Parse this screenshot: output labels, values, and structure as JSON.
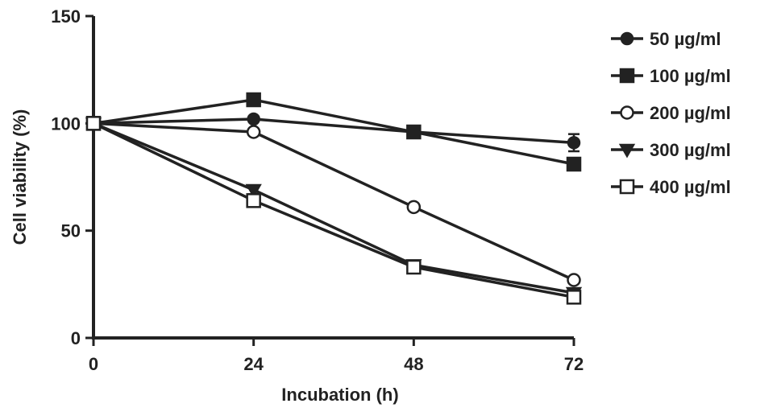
{
  "chart_data": {
    "type": "line",
    "xlabel": "Incubation  (h)",
    "ylabel": "Cell viability (%)",
    "x": [
      0,
      24,
      48,
      72
    ],
    "x_ticks": [
      "0",
      "24",
      "48",
      "72"
    ],
    "y_ticks": [
      "0",
      "50",
      "100",
      "150"
    ],
    "xlim": [
      0,
      72
    ],
    "ylim": [
      0,
      150
    ],
    "grid": false,
    "legend_position": "right",
    "series": [
      {
        "name": "50  µg/ml",
        "marker": "circle-filled",
        "values": [
          100,
          102,
          96,
          91
        ],
        "errors": [
          0,
          1,
          1,
          4
        ]
      },
      {
        "name": "100 µg/ml",
        "marker": "square-filled",
        "values": [
          100,
          111,
          96,
          81
        ],
        "errors": [
          0,
          1,
          1,
          2
        ]
      },
      {
        "name": "200 µg/ml",
        "marker": "circle-open",
        "values": [
          100,
          96,
          61,
          27
        ],
        "errors": [
          0,
          1,
          1,
          1
        ]
      },
      {
        "name": "300 µg/ml",
        "marker": "triangle-down",
        "values": [
          100,
          69,
          34,
          21
        ],
        "errors": [
          0,
          2,
          1,
          1
        ]
      },
      {
        "name": "400 µg/ml",
        "marker": "square-open",
        "values": [
          100,
          64,
          33,
          19
        ],
        "errors": [
          0,
          1,
          1,
          1
        ]
      }
    ]
  }
}
